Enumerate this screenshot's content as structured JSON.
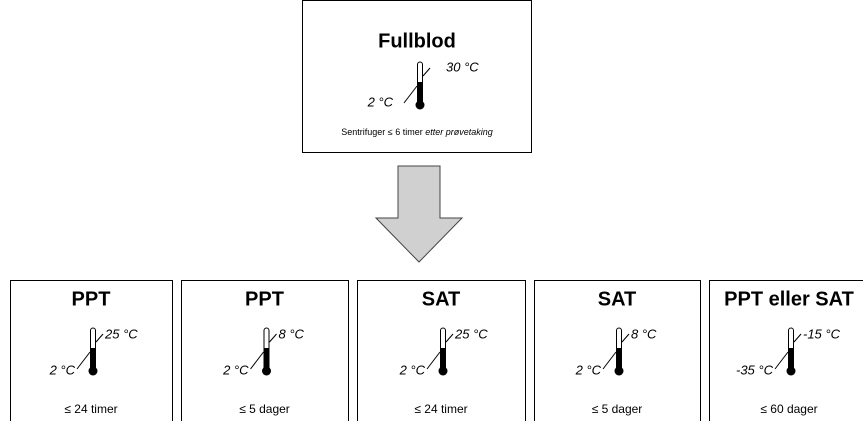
{
  "source": {
    "title": "Fullblod",
    "temp_high": "30 °C",
    "temp_low": "2 °C",
    "footer_plain": "Sentrifuger ≤ 6 timer",
    "footer_italic": "etter prøvetaking"
  },
  "targets": [
    {
      "title": "PPT",
      "temp_high": "25 °C",
      "temp_low": "2 °C",
      "duration": "≤ 24 timer"
    },
    {
      "title": "PPT",
      "temp_high": "8 °C",
      "temp_low": "2 °C",
      "duration": "≤ 5 dager"
    },
    {
      "title": "SAT",
      "temp_high": "25 °C",
      "temp_low": "2 °C",
      "duration": "≤ 24 timer"
    },
    {
      "title": "SAT",
      "temp_high": "8 °C",
      "temp_low": "2 °C",
      "duration": "≤ 5 dager"
    },
    {
      "title": "PPT eller SAT",
      "temp_high": "-15 °C",
      "temp_low": "-35 °C",
      "duration": "≤ 60 dager"
    }
  ]
}
